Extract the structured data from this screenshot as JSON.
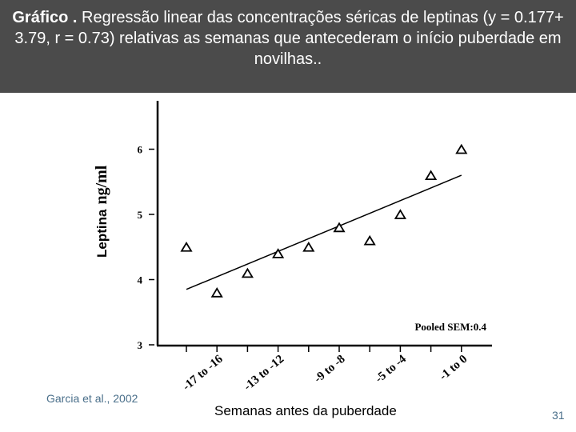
{
  "header": {
    "title_bold": "Gráfico .",
    "title_rest": " Regressão linear das concentrações séricas de leptinas (y = 0.177+ 3.79, r = 0.73) relativas as semanas que antecederam o início  puberdade em novilhas.."
  },
  "citation": "Garcia et al., 2002",
  "page_number": "31",
  "chart_data": {
    "type": "scatter",
    "title": "",
    "ylabel_main": "Leptina",
    "ylabel_unit": "ng/ml",
    "xlabel": "Semanas antes da puberdade",
    "yticks": [
      "3",
      "4",
      "5",
      "6"
    ],
    "ylim": [
      3,
      6.8
    ],
    "x_tick_labels": [
      "-17 to -16",
      "-13 to -12",
      "-9 to -8",
      "-5 to -4",
      "-1 to 0"
    ],
    "x_labeled_indices": [
      1,
      3,
      5,
      7,
      9
    ],
    "values": [
      4.5,
      3.8,
      4.1,
      4.4,
      4.5,
      4.8,
      4.6,
      5.0,
      5.6,
      6.0
    ],
    "regression_line": {
      "start": 3.85,
      "end": 5.6
    },
    "annotation": "Pooled SEM:0.4",
    "marker": "triangle-open"
  }
}
